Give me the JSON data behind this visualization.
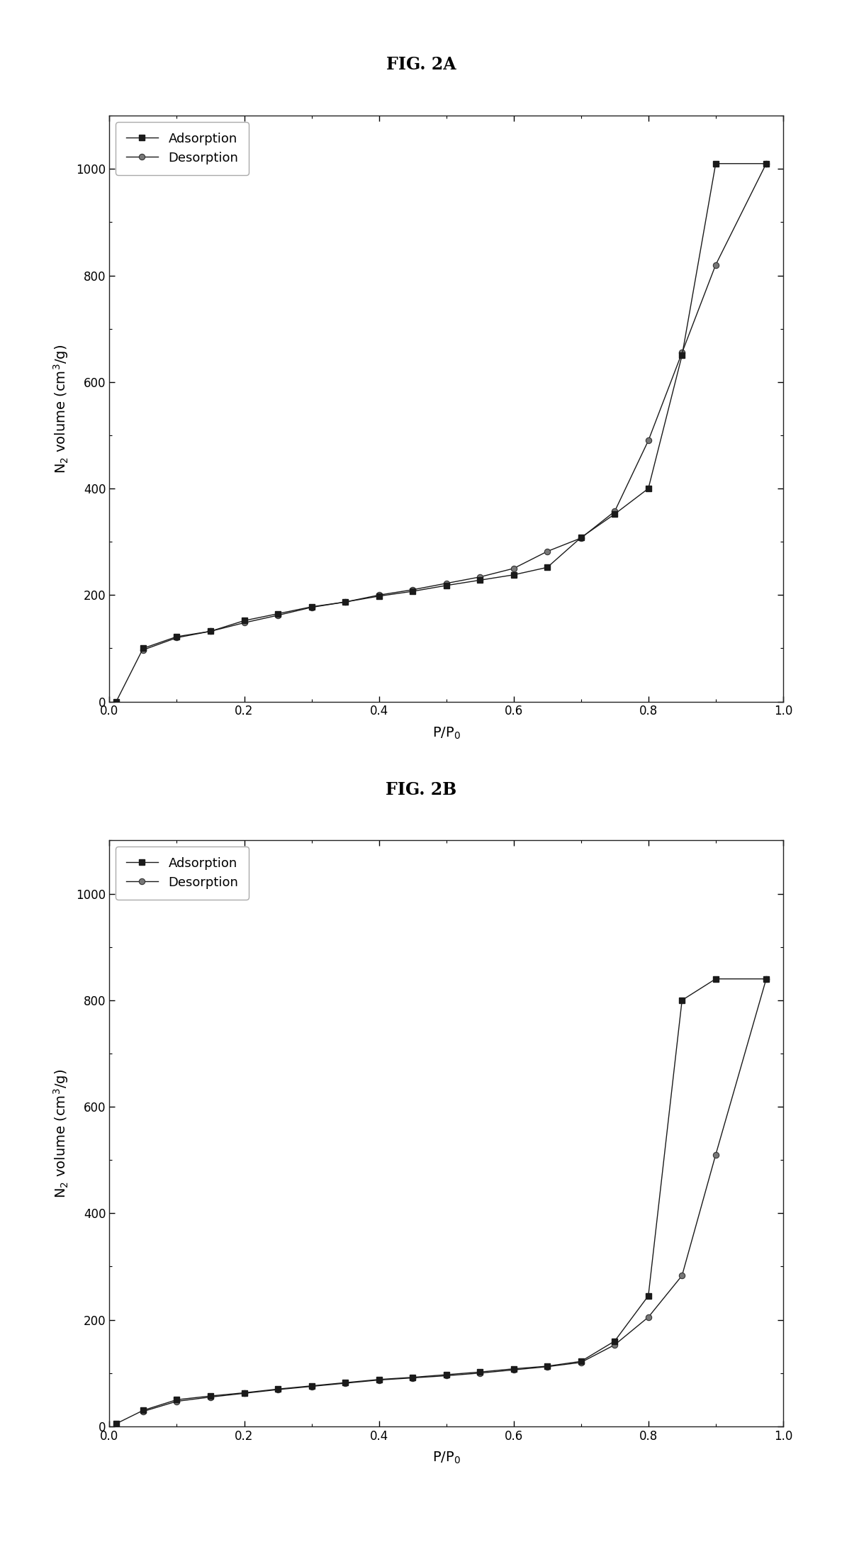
{
  "fig2a": {
    "title": "FIG. 2A",
    "adsorption_x": [
      0.01,
      0.05,
      0.1,
      0.15,
      0.2,
      0.25,
      0.3,
      0.35,
      0.4,
      0.45,
      0.5,
      0.55,
      0.6,
      0.65,
      0.7,
      0.75,
      0.8,
      0.85,
      0.9,
      0.975
    ],
    "adsorption_y": [
      0,
      100,
      122,
      132,
      152,
      165,
      178,
      187,
      198,
      207,
      218,
      228,
      238,
      252,
      308,
      352,
      400,
      650,
      1010,
      1010
    ],
    "desorption_x": [
      0.05,
      0.1,
      0.15,
      0.2,
      0.25,
      0.3,
      0.35,
      0.4,
      0.45,
      0.5,
      0.55,
      0.6,
      0.65,
      0.7,
      0.75,
      0.8,
      0.85,
      0.9,
      0.975
    ],
    "desorption_y": [
      97,
      120,
      132,
      148,
      162,
      177,
      187,
      200,
      210,
      222,
      234,
      250,
      282,
      307,
      357,
      490,
      655,
      820,
      1010
    ],
    "xlim": [
      0.0,
      1.0
    ],
    "ylim": [
      0,
      1100
    ],
    "yticks": [
      0,
      200,
      400,
      600,
      800,
      1000
    ],
    "xticks": [
      0.0,
      0.2,
      0.4,
      0.6,
      0.8,
      1.0
    ]
  },
  "fig2b": {
    "title": "FIG. 2B",
    "adsorption_x": [
      0.01,
      0.05,
      0.1,
      0.15,
      0.2,
      0.25,
      0.3,
      0.35,
      0.4,
      0.45,
      0.5,
      0.55,
      0.6,
      0.65,
      0.7,
      0.75,
      0.8,
      0.85,
      0.9,
      0.975
    ],
    "adsorption_y": [
      5,
      30,
      50,
      57,
      63,
      70,
      76,
      82,
      88,
      92,
      97,
      102,
      108,
      113,
      122,
      160,
      245,
      800,
      840,
      840
    ],
    "desorption_x": [
      0.05,
      0.1,
      0.15,
      0.2,
      0.25,
      0.3,
      0.35,
      0.4,
      0.45,
      0.5,
      0.55,
      0.6,
      0.65,
      0.7,
      0.75,
      0.8,
      0.85,
      0.9,
      0.975
    ],
    "desorption_y": [
      28,
      47,
      55,
      62,
      69,
      75,
      81,
      87,
      91,
      95,
      100,
      106,
      112,
      120,
      153,
      205,
      283,
      510,
      840
    ],
    "xlim": [
      0.0,
      1.0
    ],
    "ylim": [
      0,
      1100
    ],
    "yticks": [
      0,
      200,
      400,
      600,
      800,
      1000
    ],
    "xticks": [
      0.0,
      0.2,
      0.4,
      0.6,
      0.8,
      1.0
    ]
  },
  "line_color": "#1a1a1a",
  "desorption_line_color": "#555555",
  "adsorption_marker": "s",
  "desorption_marker": "o",
  "marker_size": 6,
  "line_width": 1.0,
  "legend_fontsize": 13,
  "axis_fontsize": 14,
  "tick_fontsize": 12,
  "title_fontsize": 17,
  "background_color": "#ffffff"
}
